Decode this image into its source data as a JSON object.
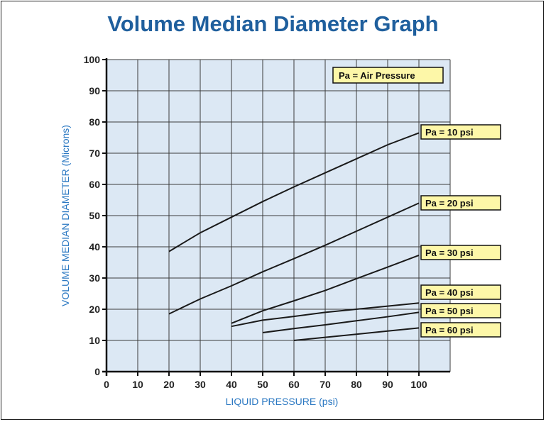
{
  "chart_data": {
    "type": "line",
    "title": "Volume Median Diameter Graph",
    "xlabel": "LIQUID PRESSURE (psi)",
    "ylabel": "VOLUME MEDIAN DIAMETER (Microns)",
    "xlim": [
      0,
      110
    ],
    "ylim": [
      0,
      100
    ],
    "xticks": [
      0,
      10,
      20,
      30,
      40,
      50,
      60,
      70,
      80,
      90,
      100
    ],
    "yticks": [
      0,
      10,
      20,
      30,
      40,
      50,
      60,
      70,
      80,
      90,
      100
    ],
    "grid": true,
    "legend_title": "Pa = Air Pressure",
    "colors": {
      "background": "#dce8f4",
      "grid": "#3b3b3b",
      "line": "#1a1a1a",
      "label_box": "#fdf7a8",
      "title": "#1f5f9d",
      "axis_label": "#2b78c2"
    },
    "series": [
      {
        "name": "Pa = 10 psi",
        "x": [
          20,
          30,
          40,
          50,
          60,
          70,
          80,
          90,
          100
        ],
        "y": [
          38.5,
          44.5,
          49.5,
          54.5,
          59.2,
          63.7,
          68.2,
          72.7,
          76.5
        ]
      },
      {
        "name": "Pa = 20 psi",
        "x": [
          20,
          30,
          40,
          50,
          60,
          70,
          80,
          90,
          100
        ],
        "y": [
          18.5,
          23.3,
          27.5,
          32,
          36.2,
          40.5,
          45,
          49.5,
          54
        ]
      },
      {
        "name": "Pa = 30 psi",
        "x": [
          40,
          50,
          60,
          70,
          80,
          90,
          100
        ],
        "y": [
          15.5,
          19.5,
          22.7,
          26,
          29.8,
          33.5,
          37.3
        ]
      },
      {
        "name": "Pa = 40 psi",
        "x": [
          40,
          50,
          60,
          70,
          80,
          90,
          100
        ],
        "y": [
          14.5,
          16.5,
          17.7,
          19,
          20,
          21,
          22
        ]
      },
      {
        "name": "Pa = 50 psi",
        "x": [
          50,
          60,
          70,
          80,
          90,
          100
        ],
        "y": [
          12.5,
          13.8,
          15,
          16.3,
          17.6,
          19
        ]
      },
      {
        "name": "Pa = 60 psi",
        "x": [
          60,
          70,
          80,
          90,
          100
        ],
        "y": [
          10,
          11,
          12,
          13,
          14
        ]
      }
    ]
  }
}
